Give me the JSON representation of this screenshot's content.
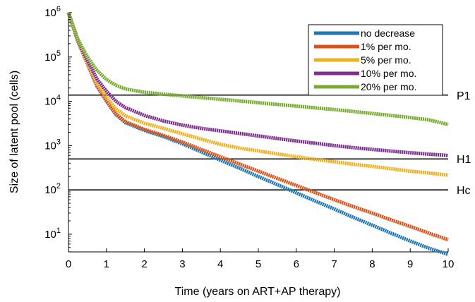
{
  "chart_data": {
    "type": "line",
    "xlabel": "Time (years on ART+AP therapy)",
    "ylabel": "Size of latent pool (cells)",
    "xlim": [
      0,
      10
    ],
    "ylim_log10": [
      0.6,
      6.0
    ],
    "y_scale": "log",
    "grid": false,
    "legend_position": "top-right",
    "x_ticks": [
      0,
      1,
      2,
      3,
      4,
      5,
      6,
      7,
      8,
      9,
      10
    ],
    "y_ticks": [
      {
        "base": "10",
        "exp": "1",
        "log10": 1
      },
      {
        "base": "10",
        "exp": "2",
        "log10": 2
      },
      {
        "base": "10",
        "exp": "3",
        "log10": 3
      },
      {
        "base": "10",
        "exp": "4",
        "log10": 4
      },
      {
        "base": "10",
        "exp": "5",
        "log10": 5
      },
      {
        "base": "10",
        "exp": "6",
        "log10": 6
      }
    ],
    "threshold_lines": [
      {
        "label": "P1",
        "y": 13800
      },
      {
        "label": "H1",
        "y": 500
      },
      {
        "label": "Hc",
        "y": 100
      }
    ],
    "series": [
      {
        "name": "no decrease",
        "color": "#1f77b4",
        "x": [
          0,
          0.25,
          0.5,
          0.75,
          1,
          1.25,
          1.5,
          2,
          2.5,
          3,
          3.5,
          4,
          4.5,
          5,
          5.5,
          6,
          6.5,
          7,
          7.5,
          8,
          8.5,
          9,
          9.5,
          10
        ],
        "y": [
          1000000,
          220000,
          70000,
          22000,
          10000,
          5000,
          3300,
          2200,
          1600,
          1100,
          720,
          470,
          310,
          200,
          132,
          86,
          56,
          37,
          24,
          16,
          10.5,
          7,
          4.8,
          3.5
        ]
      },
      {
        "name": "1% per mo.",
        "color": "#d95319",
        "x": [
          0,
          0.25,
          0.5,
          0.75,
          1,
          1.25,
          1.5,
          2,
          2.5,
          3,
          3.5,
          4,
          4.5,
          5,
          5.5,
          6,
          6.5,
          7,
          7.5,
          8,
          8.5,
          9,
          9.5,
          10
        ],
        "y": [
          1000000,
          222000,
          71000,
          22500,
          10300,
          5200,
          3450,
          2320,
          1700,
          1200,
          820,
          560,
          385,
          265,
          182,
          126,
          87,
          60,
          42,
          30,
          21,
          15,
          10.5,
          7.5
        ]
      },
      {
        "name": "5% per mo.",
        "color": "#edb120",
        "x": [
          0,
          0.25,
          0.5,
          0.75,
          1,
          1.25,
          1.5,
          2,
          2.5,
          3,
          3.5,
          4,
          4.5,
          5,
          5.5,
          6,
          6.5,
          7,
          7.5,
          8,
          8.5,
          9,
          9.5,
          10
        ],
        "y": [
          1000000,
          230000,
          76000,
          26000,
          12500,
          6700,
          4700,
          3200,
          2450,
          1850,
          1400,
          1070,
          880,
          760,
          650,
          560,
          490,
          430,
          380,
          340,
          300,
          265,
          240,
          215
        ]
      },
      {
        "name": "10% per mo.",
        "color": "#7e2f8e",
        "x": [
          0,
          0.25,
          0.5,
          0.75,
          1,
          1.25,
          1.5,
          2,
          2.5,
          3,
          3.5,
          4,
          4.5,
          5,
          5.5,
          6,
          6.5,
          7,
          7.5,
          8,
          8.5,
          9,
          9.5,
          10
        ],
        "y": [
          1000000,
          240000,
          83000,
          32000,
          17000,
          10000,
          7200,
          4800,
          3600,
          2900,
          2450,
          2150,
          1880,
          1650,
          1450,
          1270,
          1130,
          1000,
          900,
          820,
          750,
          690,
          640,
          600
        ]
      },
      {
        "name": "20% per mo.",
        "color": "#77ac30",
        "x": [
          0,
          0.25,
          0.5,
          0.75,
          1,
          1.25,
          1.5,
          2,
          2.5,
          3,
          3.5,
          4,
          4.5,
          5,
          5.5,
          6,
          6.5,
          7,
          7.5,
          8,
          8.5,
          9,
          9.5,
          10
        ],
        "y": [
          1000000,
          250000,
          100000,
          50000,
          31000,
          23000,
          19000,
          16000,
          14500,
          13200,
          12100,
          11100,
          10200,
          9300,
          8500,
          7800,
          7100,
          6500,
          5900,
          5300,
          4800,
          4300,
          3800,
          3000
        ]
      }
    ]
  }
}
